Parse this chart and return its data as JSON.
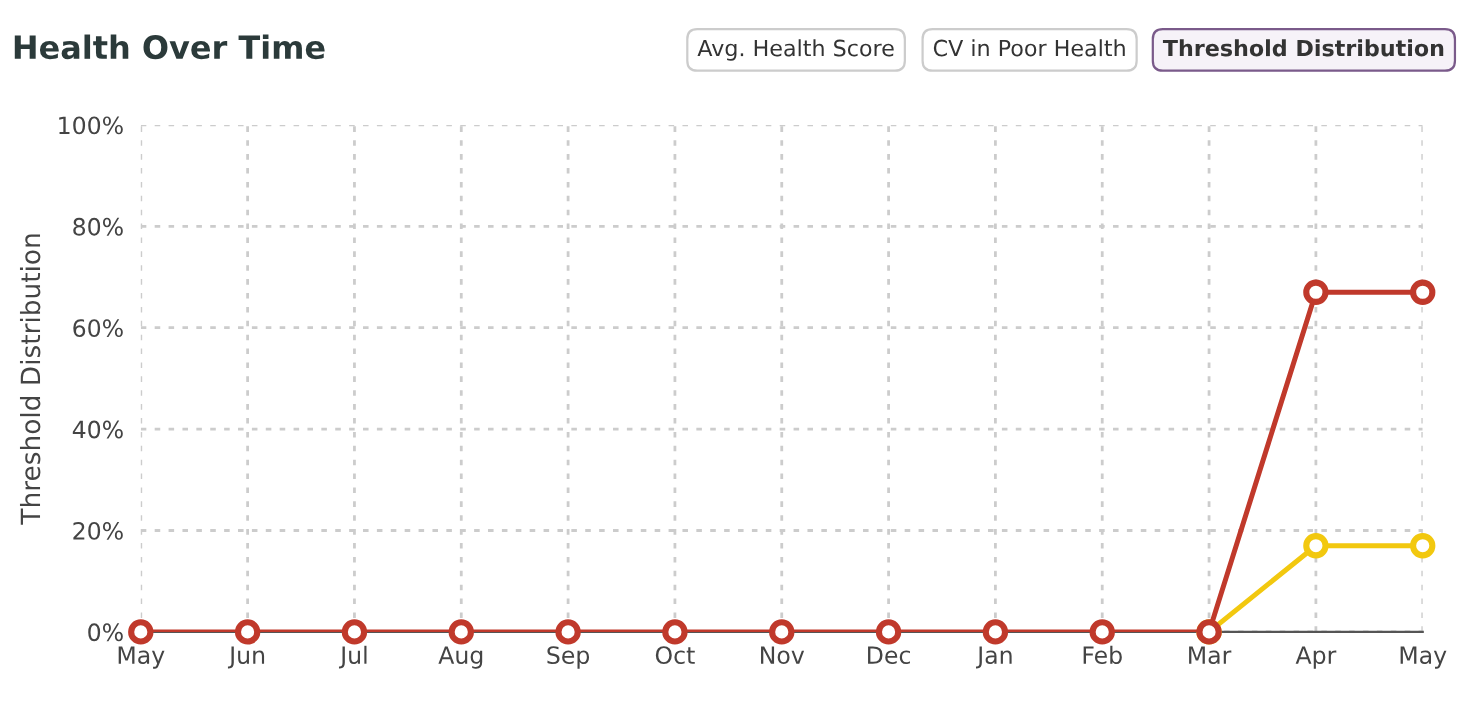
{
  "chart_data": {
    "type": "line",
    "title": "Health Over Time",
    "ylabel": "Threshold Distribution",
    "annotations": [
      "Avg. Health Score",
      "CV in Poor Health",
      "Threshold Distribution"
    ],
    "categories": [
      "May",
      "Jun",
      "Jul",
      "Aug",
      "Sep",
      "Oct",
      "Nov",
      "Dec",
      "Jan",
      "Feb",
      "Mar",
      "Apr",
      "May"
    ],
    "series": [
      {
        "color": "#f2c80f",
        "values": [
          null,
          null,
          null,
          null,
          null,
          null,
          null,
          null,
          null,
          null,
          0,
          17,
          17
        ]
      },
      {
        "color": "#c0392b",
        "values": [
          0,
          0,
          0,
          0,
          0,
          0,
          0,
          0,
          0,
          0,
          0,
          67,
          67
        ]
      }
    ],
    "ylim": [
      0,
      100
    ],
    "yticks": [
      {
        "value": 0,
        "label": "0%"
      },
      {
        "value": 20,
        "label": "20%"
      },
      {
        "value": 40,
        "label": "40%"
      },
      {
        "value": 60,
        "label": "60%"
      },
      {
        "value": 80,
        "label": "80%"
      },
      {
        "value": 100,
        "label": "100%"
      }
    ],
    "grid": true,
    "marker": "circle",
    "line_style": "solid"
  }
}
